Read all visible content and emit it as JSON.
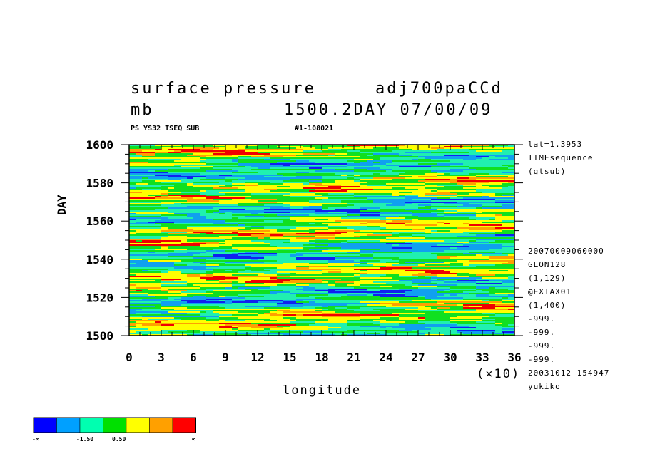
{
  "chart_data": {
    "type": "heatmap",
    "title": "surface pressure",
    "run_name": "adj700paCCd",
    "units": "mb",
    "time_label": "1500.2DAY 07/00/09",
    "subtitle_left": "PS YS32 TSEQ SUB",
    "subtitle_right": "#1-108021",
    "xlabel": "longitude",
    "ylabel": "DAY",
    "x_multiplier": "(×10)",
    "xlim": [
      0,
      36
    ],
    "ylim": [
      1500,
      1600
    ],
    "x_ticks": [
      "0",
      "3",
      "6",
      "9",
      "12",
      "15",
      "18",
      "21",
      "24",
      "27",
      "30",
      "33",
      "36"
    ],
    "y_ticks": [
      "1500",
      "1520",
      "1540",
      "1560",
      "1580",
      "1600"
    ],
    "right_info_top": [
      "lat=1.3953",
      "TIMEsequence",
      "(gtsub)"
    ],
    "right_info_bottom": [
      "20070009060000",
      "GLON128",
      "(1,129)",
      "@EXTAX01",
      "(1,400)",
      "-999.",
      "-999.",
      "-999.",
      "-999.",
      "20031012 154947",
      "yukiko"
    ],
    "colorbar": {
      "colors": [
        "#0000ff",
        "#00a0ff",
        "#00ffb0",
        "#00e000",
        "#ffff00",
        "#ffa000",
        "#ff0000"
      ],
      "labels": [
        "-∞",
        "-1.50",
        "0.50",
        "∞"
      ]
    },
    "colors": {
      "blue": "#1020f0",
      "cyan": "#10a0f0",
      "aqua": "#20f0b0",
      "green": "#10e020",
      "yellow": "#ffff00",
      "orange": "#ffa000",
      "red": "#f00000"
    }
  }
}
